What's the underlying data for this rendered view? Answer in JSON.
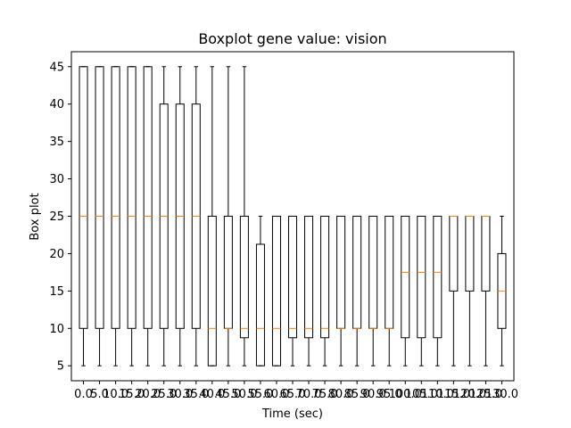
{
  "chart_data": {
    "type": "boxplot",
    "title": "Boxplot gene value: vision",
    "xlabel": "Time (sec)",
    "ylabel": "Box plot",
    "ylim": [
      3.0,
      47.0
    ],
    "yticks": [
      5,
      10,
      15,
      20,
      25,
      30,
      35,
      40,
      45
    ],
    "grid": false,
    "box_color": "#000000",
    "median_color": "#ff7f0e",
    "categories": [
      "0.0",
      "5.0",
      "10.0",
      "15.0",
      "20.0",
      "25.0",
      "30.0",
      "35.0",
      "40.0",
      "45.0",
      "50.0",
      "55.0",
      "60.0",
      "65.0",
      "70.0",
      "75.0",
      "80.0",
      "85.0",
      "90.0",
      "95.0",
      "100.0",
      "105.0",
      "110.0",
      "115.0",
      "120.0",
      "125.0",
      "130.0"
    ],
    "tick_labels": [
      "0.0",
      "5.0",
      "10.0",
      "15.0",
      "20.0",
      "25.0",
      "30.0",
      "35.0",
      "40.0",
      "45.0",
      "50.0",
      "55.0",
      "60.0",
      "65.0",
      "70.0",
      "75.0",
      "80.0",
      "85.0",
      "90.0",
      "95.0",
      "100.0",
      "105.0",
      "110.0",
      "115.0",
      "120.0",
      "125.0",
      "130.0"
    ],
    "boxes": [
      {
        "whislo": 5,
        "q1": 10,
        "med": 25,
        "q3": 45,
        "whishi": 45
      },
      {
        "whislo": 5,
        "q1": 10,
        "med": 25,
        "q3": 45,
        "whishi": 45
      },
      {
        "whislo": 5,
        "q1": 10,
        "med": 25,
        "q3": 45,
        "whishi": 45
      },
      {
        "whislo": 5,
        "q1": 10,
        "med": 25,
        "q3": 45,
        "whishi": 45
      },
      {
        "whislo": 5,
        "q1": 10,
        "med": 25,
        "q3": 45,
        "whishi": 45
      },
      {
        "whislo": 5,
        "q1": 10,
        "med": 25,
        "q3": 40,
        "whishi": 45
      },
      {
        "whislo": 5,
        "q1": 10,
        "med": 25,
        "q3": 40,
        "whishi": 45
      },
      {
        "whislo": 5,
        "q1": 10,
        "med": 25,
        "q3": 40,
        "whishi": 45
      },
      {
        "whislo": 5,
        "q1": 5,
        "med": 10,
        "q3": 25,
        "whishi": 45
      },
      {
        "whislo": 5,
        "q1": 10,
        "med": 10,
        "q3": 25,
        "whishi": 45
      },
      {
        "whislo": 5,
        "q1": 8.75,
        "med": 10,
        "q3": 25,
        "whishi": 45
      },
      {
        "whislo": 5,
        "q1": 5,
        "med": 10,
        "q3": 21.25,
        "whishi": 25
      },
      {
        "whislo": 5,
        "q1": 5,
        "med": 10,
        "q3": 25,
        "whishi": 25
      },
      {
        "whislo": 5,
        "q1": 8.75,
        "med": 10,
        "q3": 25,
        "whishi": 25
      },
      {
        "whislo": 5,
        "q1": 8.75,
        "med": 10,
        "q3": 25,
        "whishi": 25
      },
      {
        "whislo": 5,
        "q1": 8.75,
        "med": 10,
        "q3": 25,
        "whishi": 25
      },
      {
        "whislo": 5,
        "q1": 10,
        "med": 10,
        "q3": 25,
        "whishi": 25
      },
      {
        "whislo": 5,
        "q1": 10,
        "med": 10,
        "q3": 25,
        "whishi": 25
      },
      {
        "whislo": 5,
        "q1": 10,
        "med": 10,
        "q3": 25,
        "whishi": 25
      },
      {
        "whislo": 5,
        "q1": 10,
        "med": 10,
        "q3": 25,
        "whishi": 25
      },
      {
        "whislo": 5,
        "q1": 8.75,
        "med": 17.5,
        "q3": 25,
        "whishi": 25
      },
      {
        "whislo": 5,
        "q1": 8.75,
        "med": 17.5,
        "q3": 25,
        "whishi": 25
      },
      {
        "whislo": 5,
        "q1": 8.75,
        "med": 17.5,
        "q3": 25,
        "whishi": 25
      },
      {
        "whislo": 5,
        "q1": 15,
        "med": 25,
        "q3": 25,
        "whishi": 25
      },
      {
        "whislo": 5,
        "q1": 15,
        "med": 25,
        "q3": 25,
        "whishi": 25
      },
      {
        "whislo": 5,
        "q1": 15,
        "med": 25,
        "q3": 25,
        "whishi": 25
      },
      {
        "whislo": 5,
        "q1": 10,
        "med": 15,
        "q3": 20,
        "whishi": 25
      }
    ]
  }
}
